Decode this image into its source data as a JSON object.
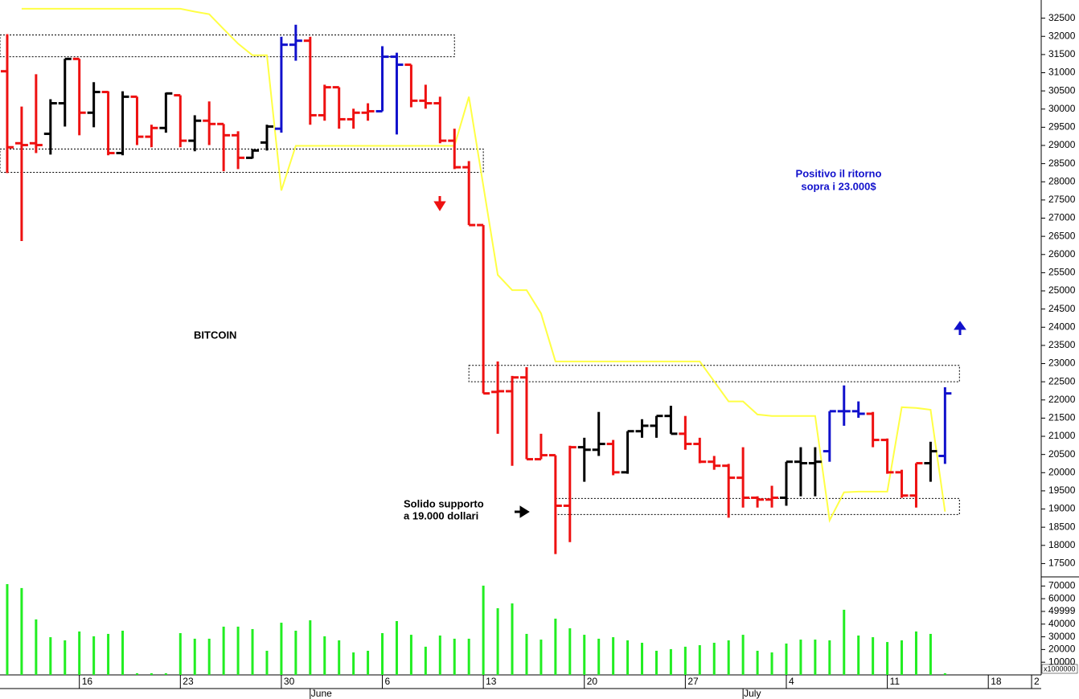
{
  "chart_data": {
    "type": "ohlc",
    "title": "BITCOIN",
    "annotations": [
      "Solido supporto",
      "a 19.000 dollari",
      "Positivo il ritorno",
      "sopra i 23.000$"
    ],
    "xlim": [
      -0.5,
      71.5
    ],
    "xticks": [
      {
        "value": 5,
        "label": "16"
      },
      {
        "value": 12,
        "label": "23"
      },
      {
        "value": 19,
        "label": "30"
      },
      {
        "value": 26,
        "label": "6"
      },
      {
        "value": 33,
        "label": "13"
      },
      {
        "value": 40,
        "label": "20"
      },
      {
        "value": 47,
        "label": "27"
      },
      {
        "value": 54,
        "label": "4"
      },
      {
        "value": 61,
        "label": "11"
      },
      {
        "value": 68,
        "label": "18"
      },
      {
        "value": 71,
        "label": "2"
      }
    ],
    "month_ticks": [
      {
        "value": 21,
        "label": "June"
      },
      {
        "value": 51,
        "label": "July"
      }
    ],
    "ylim": [
      17200,
      33000
    ],
    "yticks": [
      17500,
      18000,
      18500,
      19000,
      19500,
      20000,
      20500,
      21000,
      21500,
      22000,
      22500,
      23000,
      23500,
      24000,
      24500,
      25000,
      25500,
      26000,
      26500,
      27000,
      27500,
      28000,
      28500,
      29000,
      29500,
      30000,
      30500,
      31000,
      31500,
      32000,
      32500
    ],
    "open": [
      31040,
      29060,
      29060,
      29320,
      30160,
      31380,
      29900,
      30470,
      28790,
      30340,
      29240,
      29480,
      30380,
      29130,
      29680,
      29590,
      29280,
      28660,
      29080,
      29460,
      31770,
      31880,
      29830,
      30600,
      29720,
      29900,
      29940,
      31440,
      31220,
      30230,
      30160,
      29130,
      28400,
      26810,
      22220,
      22240,
      22620,
      20370,
      20480,
      19090,
      20700,
      20630,
      20790,
      20010,
      21140,
      21290,
      21560,
      21070,
      20790,
      20300,
      20190,
      19860,
      19310,
      19260,
      19310,
      20300,
      20260,
      20590,
      21690,
      21690,
      21620,
      20900,
      20010,
      19370,
      20260,
      20460
    ],
    "high": [
      32060,
      30070,
      30960,
      30270,
      31380,
      31380,
      30740,
      30490,
      30490,
      30340,
      29570,
      30450,
      30380,
      29830,
      30210,
      29590,
      29390,
      28900,
      29570,
      31990,
      32320,
      31990,
      30670,
      30600,
      30010,
      30160,
      31730,
      31550,
      31220,
      30670,
      30340,
      29460,
      28570,
      26810,
      23060,
      22660,
      22900,
      21070,
      20480,
      20740,
      20960,
      21670,
      20900,
      21140,
      21470,
      21560,
      21840,
      21560,
      20960,
      20460,
      20240,
      20700,
      19350,
      19640,
      20300,
      20700,
      20700,
      21690,
      22400,
      21960,
      21670,
      20940,
      20080,
      20260,
      20850,
      22350
    ],
    "low": [
      28240,
      26370,
      28790,
      28750,
      29520,
      29280,
      29500,
      28730,
      28730,
      29010,
      28950,
      29350,
      28950,
      28840,
      29010,
      28290,
      28350,
      28640,
      28860,
      29350,
      31330,
      29570,
      29680,
      29460,
      29460,
      29680,
      29940,
      29300,
      30050,
      30010,
      29060,
      28350,
      26810,
      22180,
      21070,
      20190,
      20370,
      20370,
      17760,
      18090,
      19750,
      20460,
      19930,
      19970,
      20960,
      20960,
      21070,
      20630,
      20260,
      20080,
      18760,
      19040,
      19040,
      19040,
      19090,
      19350,
      19350,
      20300,
      21290,
      21510,
      20700,
      19970,
      19310,
      19040,
      19750,
      20240
    ],
    "close": [
      28950,
      29010,
      29010,
      30160,
      31380,
      29900,
      30470,
      28790,
      30340,
      29240,
      29480,
      30430,
      29130,
      29680,
      29590,
      29280,
      28660,
      28860,
      29520,
      31770,
      31880,
      29830,
      30600,
      29720,
      29900,
      29940,
      31440,
      31220,
      30230,
      30160,
      29130,
      28400,
      26810,
      22180,
      22240,
      22620,
      20370,
      20480,
      19090,
      20700,
      20630,
      20790,
      20010,
      21140,
      21290,
      21560,
      21070,
      20790,
      20300,
      20190,
      19860,
      19310,
      19260,
      19310,
      20300,
      20260,
      20300,
      21690,
      21690,
      21620,
      20900,
      20010,
      19370,
      20260,
      20590,
      22180
    ],
    "colors": [
      "#ee1111",
      "#ee1111",
      "#ee1111",
      "#000000",
      "#000000",
      "#ee1111",
      "#000000",
      "#ee1111",
      "#000000",
      "#ee1111",
      "#ee1111",
      "#000000",
      "#ee1111",
      "#000000",
      "#ee1111",
      "#ee1111",
      "#ee1111",
      "#000000",
      "#000000",
      "#1111cc",
      "#1111cc",
      "#ee1111",
      "#ee1111",
      "#ee1111",
      "#ee1111",
      "#ee1111",
      "#1111cc",
      "#1111cc",
      "#ee1111",
      "#ee1111",
      "#ee1111",
      "#ee1111",
      "#ee1111",
      "#ee1111",
      "#ee1111",
      "#ee1111",
      "#ee1111",
      "#ee1111",
      "#ee1111",
      "#ee1111",
      "#000000",
      "#000000",
      "#ee1111",
      "#000000",
      "#000000",
      "#000000",
      "#000000",
      "#ee1111",
      "#ee1111",
      "#ee1111",
      "#ee1111",
      "#ee1111",
      "#ee1111",
      "#ee1111",
      "#000000",
      "#000000",
      "#000000",
      "#1111cc",
      "#1111cc",
      "#1111cc",
      "#ee1111",
      "#ee1111",
      "#ee1111",
      "#ee1111",
      "#000000",
      "#1111cc"
    ],
    "line": {
      "color": "#ffff44",
      "values": [
        null,
        32760,
        32760,
        32760,
        32760,
        32760,
        32760,
        32760,
        32760,
        32760,
        32760,
        32760,
        32760,
        32680,
        32610,
        32200,
        31800,
        31480,
        31480,
        27760,
        28990,
        28990,
        28990,
        28990,
        28990,
        28990,
        28990,
        28990,
        28990,
        28990,
        28990,
        28990,
        30340,
        27890,
        25440,
        25020,
        25020,
        24380,
        23060,
        23060,
        23060,
        23060,
        23060,
        23060,
        23060,
        23060,
        23060,
        23060,
        23060,
        22510,
        21960,
        21960,
        21600,
        21560,
        21560,
        21560,
        21560,
        18690,
        19460,
        19480,
        19480,
        19480,
        21800,
        21780,
        21730,
        18930
      ]
    },
    "zones": [
      {
        "x": [
          -0.5,
          31
        ],
        "y": [
          31440,
          32040
        ]
      },
      {
        "x": [
          -0.5,
          33
        ],
        "y": [
          28260,
          28900
        ]
      },
      {
        "x": [
          32,
          66
        ],
        "y": [
          22500,
          22950
        ]
      },
      {
        "x": [
          38,
          66
        ],
        "y": [
          18850,
          19290
        ]
      }
    ],
    "volume": {
      "color": "#22ee22",
      "unit_label": "x1000000",
      "ylim": [
        0,
        77200
      ],
      "yticks": [
        10000,
        20000,
        30000,
        40000,
        49999,
        60000,
        70000
      ],
      "values": [
        71500,
        68400,
        43700,
        29700,
        27200,
        34200,
        30400,
        32300,
        34800,
        1300,
        1300,
        1300,
        32900,
        28500,
        28500,
        38000,
        38000,
        36100,
        19000,
        41100,
        34800,
        43000,
        30400,
        27200,
        17700,
        19000,
        32900,
        42400,
        31600,
        22200,
        31000,
        28500,
        28500,
        70300,
        52500,
        56300,
        32300,
        27800,
        44300,
        36700,
        31600,
        28500,
        29700,
        27200,
        25300,
        19000,
        20300,
        22200,
        23400,
        25300,
        27200,
        31600,
        19000,
        17700,
        24700,
        27800,
        27800,
        27200,
        51300,
        31000,
        29700,
        25900,
        27200,
        34200,
        32300,
        1300
      ]
    }
  }
}
